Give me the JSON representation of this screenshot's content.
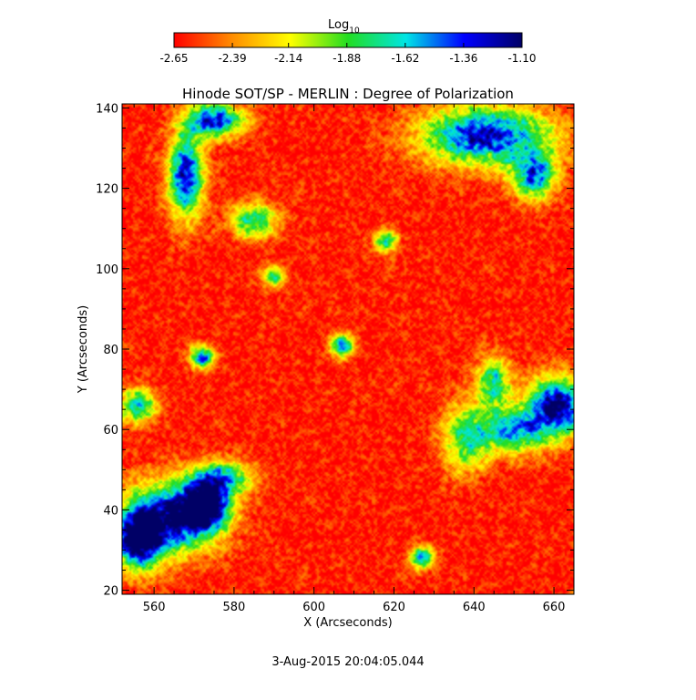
{
  "colorbar": {
    "label_base": "Log",
    "label_sub": "10",
    "ticks": [
      "-2.65",
      "-2.39",
      "-2.14",
      "-1.88",
      "-1.62",
      "-1.36",
      "-1.10"
    ],
    "range": [
      -2.65,
      -1.1
    ],
    "colors": [
      "#ff0000",
      "#ff8c00",
      "#ffff00",
      "#22dd22",
      "#00e5e5",
      "#0000ff",
      "#000066"
    ]
  },
  "footer": {
    "date": "3-Aug-2015 20:04:05.044"
  },
  "chart_data": {
    "type": "heatmap",
    "title": "Hinode SOT/SP - MERLIN : Degree of Polarization",
    "xlabel": "X (Arcseconds)",
    "ylabel": "Y (Arcseconds)",
    "xlim": [
      552,
      665
    ],
    "ylim": [
      19,
      141
    ],
    "xticks": [
      560,
      580,
      600,
      620,
      640,
      660
    ],
    "yticks": [
      20,
      40,
      60,
      80,
      100,
      120,
      140
    ],
    "value_unit": "log10 degree of polarization",
    "background_level": -2.6,
    "features": [
      {
        "x": 564,
        "y": 38,
        "sx": 8,
        "sy": 6,
        "peak": -1.15
      },
      {
        "x": 573,
        "y": 41,
        "sx": 4,
        "sy": 4,
        "peak": -1.12
      },
      {
        "x": 556,
        "y": 32,
        "sx": 4,
        "sy": 5,
        "peak": -1.2
      },
      {
        "x": 577,
        "y": 48,
        "sx": 5,
        "sy": 3,
        "peak": -1.6
      },
      {
        "x": 568,
        "y": 123,
        "sx": 3,
        "sy": 7,
        "peak": -1.2
      },
      {
        "x": 575,
        "y": 137,
        "sx": 5,
        "sy": 3,
        "peak": -1.3
      },
      {
        "x": 585,
        "y": 112,
        "sx": 4,
        "sy": 3,
        "peak": -1.7
      },
      {
        "x": 643,
        "y": 133,
        "sx": 11,
        "sy": 5,
        "peak": -1.25
      },
      {
        "x": 655,
        "y": 123,
        "sx": 4,
        "sy": 4,
        "peak": -1.5
      },
      {
        "x": 661,
        "y": 66,
        "sx": 5,
        "sy": 5,
        "peak": -1.15
      },
      {
        "x": 650,
        "y": 60,
        "sx": 6,
        "sy": 4,
        "peak": -1.55
      },
      {
        "x": 638,
        "y": 58,
        "sx": 4,
        "sy": 6,
        "peak": -1.8
      },
      {
        "x": 645,
        "y": 72,
        "sx": 3,
        "sy": 4,
        "peak": -1.7
      },
      {
        "x": 627,
        "y": 28,
        "sx": 2,
        "sy": 2,
        "peak": -1.5
      },
      {
        "x": 556,
        "y": 66,
        "sx": 3,
        "sy": 3,
        "peak": -1.6
      },
      {
        "x": 572,
        "y": 78,
        "sx": 2,
        "sy": 2,
        "peak": -1.4
      },
      {
        "x": 607,
        "y": 81,
        "sx": 2,
        "sy": 2,
        "peak": -1.5
      },
      {
        "x": 618,
        "y": 107,
        "sx": 2,
        "sy": 2,
        "peak": -1.7
      },
      {
        "x": 590,
        "y": 98,
        "sx": 2,
        "sy": 2,
        "peak": -1.8
      }
    ]
  }
}
